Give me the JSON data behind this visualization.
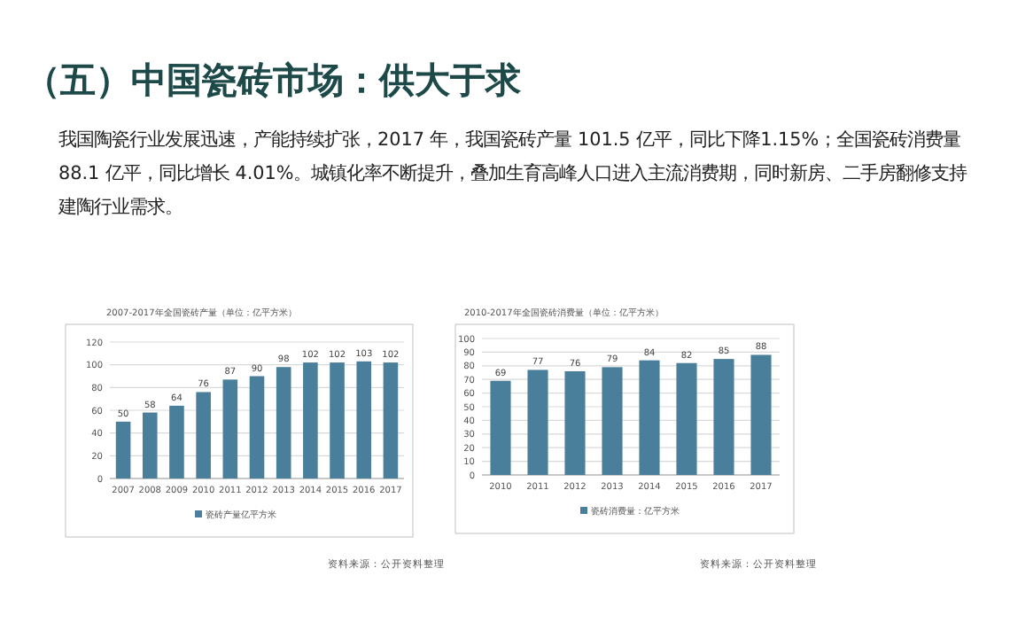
{
  "chart_data": [
    {
      "type": "other",
      "title": "（五）中国瓷砖市场：供大于求",
      "annotations": [
        "我国陶瓷行业发展迅速，产能持续扩张，2017 年，我国瓷砖产量 101.5 亿平，同比下降1.15%；全国瓷砖消费量 88.1 亿平，同比增长 4.01%。城镇化率不断提升，叠加生育高峰人口进入主流消费期，同时新房、二手房翻修支持建陶行业需求。"
      ]
    },
    {
      "type": "bar",
      "title": "2007-2017年全国瓷砖产量（单位：亿平方米）",
      "categories": [
        "2007",
        "2008",
        "2009",
        "2010",
        "2011",
        "2012",
        "2013",
        "2014",
        "2015",
        "2016",
        "2017"
      ],
      "series": [
        {
          "name": "瓷砖产量亿平方米",
          "color": "#4a7f9b",
          "values": [
            50,
            58,
            64,
            76,
            87,
            90,
            98,
            102,
            102,
            103,
            102
          ]
        }
      ],
      "ylim": [
        0,
        120
      ],
      "yticks": [
        0,
        20,
        40,
        60,
        80,
        100,
        120
      ],
      "grid": "y",
      "legend": "bottom",
      "data_labels": true,
      "annotations": [
        "资料来源：公开资料整理"
      ]
    },
    {
      "type": "bar",
      "title": "2010-2017年全国瓷砖消费量（单位：亿平方米）",
      "categories": [
        "2010",
        "2011",
        "2012",
        "2013",
        "2014",
        "2015",
        "2016",
        "2017"
      ],
      "series": [
        {
          "name": "瓷砖消费量：亿平方米",
          "color": "#4a7f9b",
          "values": [
            69,
            77,
            76,
            79,
            84,
            82,
            85,
            88
          ]
        }
      ],
      "ylim": [
        0,
        100
      ],
      "yticks": [
        0,
        10,
        20,
        30,
        40,
        50,
        60,
        70,
        80,
        90,
        100
      ],
      "grid": "y",
      "legend": "bottom",
      "data_labels": true,
      "annotations": [
        "资料来源：公开资料整理"
      ]
    }
  ]
}
